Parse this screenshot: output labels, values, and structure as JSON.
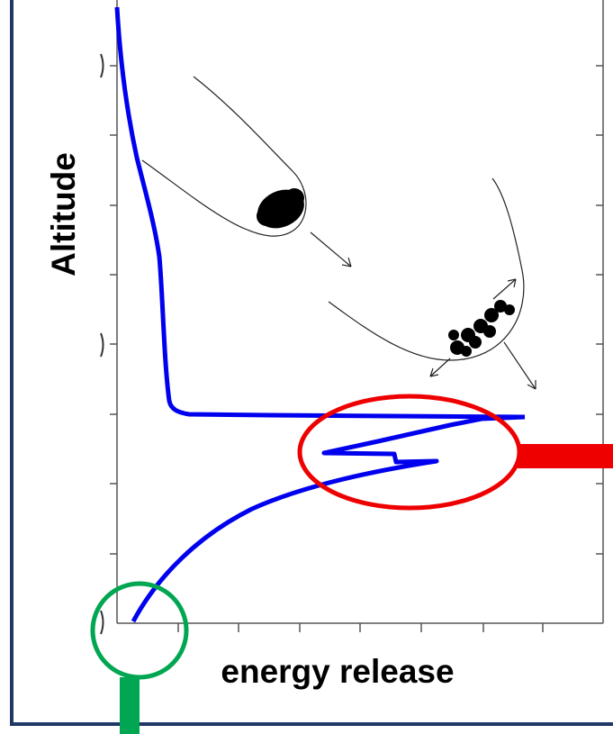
{
  "axes": {
    "x_label": "energy release",
    "y_label": "Altitude"
  }
}
